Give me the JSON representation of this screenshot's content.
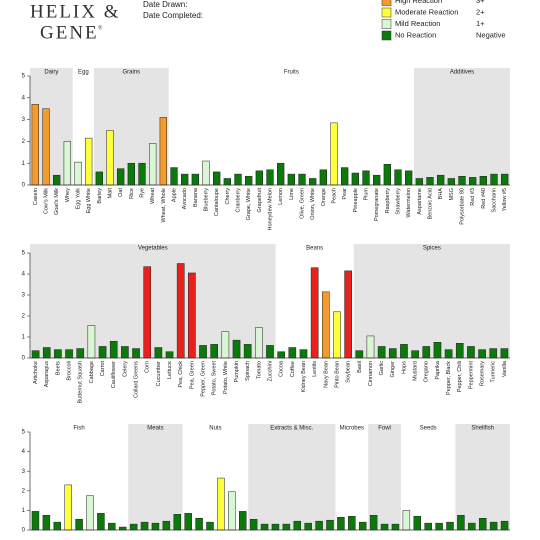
{
  "header": {
    "logo_line1": "HELIX &",
    "logo_line2": "GENE",
    "registered": "®",
    "date_drawn": "Date Drawn:",
    "date_completed": "Date Completed:"
  },
  "legend": [
    {
      "label": "High Reaction",
      "grade": "3+",
      "color": "#f39b2f"
    },
    {
      "label": "Moderate Reaction",
      "grade": "2+",
      "color": "#ffff3c"
    },
    {
      "label": "Mild Reaction",
      "grade": "1+",
      "color": "#d9f7d4"
    },
    {
      "label": "No Reaction",
      "grade": "Negative",
      "color": "#0b7a0b"
    }
  ],
  "chart_data": [
    {
      "type": "bar",
      "ylim": [
        0,
        5
      ],
      "yticks": [
        0,
        1,
        2,
        3,
        4,
        5
      ],
      "shade_color": "#e4e4e4",
      "groups": [
        {
          "name": "Dairy",
          "shaded": true,
          "categories": [
            "Casein",
            "Cow's Milk",
            "Goat's Milk",
            "Whey"
          ],
          "values": [
            3.7,
            3.5,
            0.45,
            2.0
          ],
          "colors": [
            "#f39b2f",
            "#f39b2f",
            "#0b7a0b",
            "#d9f7d4"
          ]
        },
        {
          "name": "Egg",
          "shaded": false,
          "categories": [
            "Egg Yolk",
            "Egg White"
          ],
          "values": [
            1.05,
            2.15
          ],
          "colors": [
            "#d9f7d4",
            "#ffff3c"
          ]
        },
        {
          "name": "Grains",
          "shaded": true,
          "categories": [
            "Barley",
            "Malt",
            "Oat",
            "Rice",
            "Rye",
            "Wheat",
            "Wheat, Whole"
          ],
          "values": [
            0.6,
            2.5,
            0.75,
            1.0,
            1.0,
            1.9,
            3.1
          ],
          "colors": [
            "#0b7a0b",
            "#ffff3c",
            "#0b7a0b",
            "#0b7a0b",
            "#0b7a0b",
            "#d9f7d4",
            "#f39b2f"
          ]
        },
        {
          "name": "Fruits",
          "shaded": false,
          "categories": [
            "Apple",
            "Avocado",
            "Banana",
            "Blueberry",
            "Cantaloupe",
            "Cherry",
            "Cranberry",
            "Grape, White",
            "Grapefruit",
            "Honeydew Melon",
            "Lemon",
            "Lime",
            "Olive, Green",
            "Onion, White",
            "Orange",
            "Peach",
            "Pear",
            "Pineapple",
            "Plum",
            "Pomegranate",
            "Raspberry",
            "Strawberry",
            "Watermelon"
          ],
          "values": [
            0.8,
            0.5,
            0.5,
            1.1,
            0.6,
            0.3,
            0.5,
            0.4,
            0.65,
            0.7,
            1.0,
            0.5,
            0.5,
            0.3,
            0.7,
            2.85,
            0.8,
            0.55,
            0.65,
            0.45,
            0.95,
            0.7,
            0.65
          ],
          "colors": [
            "#0b7a0b",
            "#0b7a0b",
            "#0b7a0b",
            "#d9f7d4",
            "#0b7a0b",
            "#0b7a0b",
            "#0b7a0b",
            "#0b7a0b",
            "#0b7a0b",
            "#0b7a0b",
            "#0b7a0b",
            "#0b7a0b",
            "#0b7a0b",
            "#0b7a0b",
            "#0b7a0b",
            "#ffff3c",
            "#0b7a0b",
            "#0b7a0b",
            "#0b7a0b",
            "#0b7a0b",
            "#0b7a0b",
            "#0b7a0b",
            "#0b7a0b"
          ]
        },
        {
          "name": "Additives",
          "shaded": true,
          "categories": [
            "Aspartame",
            "Benzoic Acid",
            "BHA",
            "MSG",
            "Polysorbate 80",
            "Red #3",
            "Red #40",
            "Saccharin",
            "Yellow #5"
          ],
          "values": [
            0.3,
            0.35,
            0.45,
            0.3,
            0.4,
            0.35,
            0.4,
            0.5,
            0.5
          ],
          "colors": [
            "#0b7a0b",
            "#0b7a0b",
            "#0b7a0b",
            "#0b7a0b",
            "#0b7a0b",
            "#0b7a0b",
            "#0b7a0b",
            "#0b7a0b",
            "#0b7a0b"
          ]
        }
      ]
    },
    {
      "type": "bar",
      "ylim": [
        0,
        5
      ],
      "yticks": [
        0,
        1,
        2,
        3,
        4,
        5
      ],
      "shade_color": "#e4e4e4",
      "groups": [
        {
          "name": "Vegetables",
          "shaded": true,
          "categories": [
            "Artichoke",
            "Asparagus",
            "Beets",
            "Broccoli",
            "Butternut Squash",
            "Cabbage",
            "Carrot",
            "Cauliflower",
            "Celery",
            "Collard Greens",
            "Corn",
            "Cucumber",
            "Lettuce",
            "Pea, Chick",
            "Pea, Green",
            "Pepper, Green",
            "Potato, Sweet",
            "Potato, White",
            "Pumpkin",
            "Spinach",
            "Tomato",
            "Zucchini"
          ],
          "values": [
            0.35,
            0.5,
            0.4,
            0.4,
            0.45,
            1.55,
            0.55,
            0.8,
            0.55,
            0.45,
            4.35,
            0.5,
            0.3,
            4.5,
            4.05,
            0.6,
            0.65,
            1.25,
            0.85,
            0.65,
            1.45,
            0.6
          ],
          "colors": [
            "#0b7a0b",
            "#0b7a0b",
            "#0b7a0b",
            "#0b7a0b",
            "#0b7a0b",
            "#d9f7d4",
            "#0b7a0b",
            "#0b7a0b",
            "#0b7a0b",
            "#0b7a0b",
            "#e8211d",
            "#0b7a0b",
            "#0b7a0b",
            "#e8211d",
            "#e8211d",
            "#0b7a0b",
            "#0b7a0b",
            "#d9f7d4",
            "#0b7a0b",
            "#0b7a0b",
            "#d9f7d4",
            "#0b7a0b"
          ]
        },
        {
          "name": "Beans",
          "shaded": false,
          "categories": [
            "Cocoa",
            "Coffee",
            "Kidney Bean",
            "Lentils",
            "Navy Bean",
            "Pinto Bean",
            "Soybean"
          ],
          "values": [
            0.3,
            0.5,
            0.4,
            4.3,
            3.15,
            2.2,
            4.15
          ],
          "colors": [
            "#0b7a0b",
            "#0b7a0b",
            "#0b7a0b",
            "#e8211d",
            "#f39b2f",
            "#ffff3c",
            "#e8211d"
          ]
        },
        {
          "name": "Spices",
          "shaded": true,
          "categories": [
            "Basil",
            "Cinnamon",
            "Garlic",
            "Ginger",
            "Hops",
            "Mustard",
            "Oregano",
            "Paprika",
            "Pepper, Black",
            "Pepper, Chili",
            "Peppermint",
            "Rosemary",
            "Turmeric",
            "Vanilla"
          ],
          "values": [
            0.35,
            1.05,
            0.55,
            0.45,
            0.65,
            0.35,
            0.55,
            0.75,
            0.4,
            0.7,
            0.55,
            0.4,
            0.45,
            0.45
          ],
          "colors": [
            "#0b7a0b",
            "#d9f7d4",
            "#0b7a0b",
            "#0b7a0b",
            "#0b7a0b",
            "#0b7a0b",
            "#0b7a0b",
            "#0b7a0b",
            "#0b7a0b",
            "#0b7a0b",
            "#0b7a0b",
            "#0b7a0b",
            "#0b7a0b",
            "#0b7a0b"
          ]
        }
      ]
    },
    {
      "type": "bar",
      "ylim": [
        0,
        5
      ],
      "yticks": [
        0,
        1,
        2,
        3,
        4,
        5
      ],
      "shade_color": "#e4e4e4",
      "groups": [
        {
          "name": "Fish",
          "shaded": false,
          "categories": [
            null,
            null,
            null,
            null,
            null,
            null,
            null,
            null,
            null
          ],
          "values": [
            0.95,
            0.75,
            0.4,
            2.3,
            0.55,
            1.75,
            0.85,
            0.35,
            0.15
          ],
          "colors": [
            "#0b7a0b",
            "#0b7a0b",
            "#0b7a0b",
            "#ffff3c",
            "#0b7a0b",
            "#d9f7d4",
            "#0b7a0b",
            "#0b7a0b",
            "#0b7a0b"
          ]
        },
        {
          "name": "Meats",
          "shaded": true,
          "categories": [
            null,
            null,
            null,
            null,
            null
          ],
          "values": [
            0.3,
            0.4,
            0.35,
            0.45,
            0.8
          ],
          "colors": [
            "#0b7a0b",
            "#0b7a0b",
            "#0b7a0b",
            "#0b7a0b",
            "#0b7a0b"
          ]
        },
        {
          "name": "Nuts",
          "shaded": false,
          "categories": [
            null,
            null,
            null,
            null,
            null,
            null
          ],
          "values": [
            0.85,
            0.6,
            0.4,
            2.65,
            1.95,
            0.95
          ],
          "colors": [
            "#0b7a0b",
            "#0b7a0b",
            "#0b7a0b",
            "#ffff3c",
            "#d9f7d4",
            "#0b7a0b"
          ]
        },
        {
          "name": "Extracts & Misc.",
          "shaded": true,
          "categories": [
            null,
            null,
            null,
            null,
            null,
            null,
            null,
            null
          ],
          "values": [
            0.55,
            0.3,
            0.3,
            0.3,
            0.45,
            0.35,
            0.45,
            0.5
          ],
          "colors": [
            "#0b7a0b",
            "#0b7a0b",
            "#0b7a0b",
            "#0b7a0b",
            "#0b7a0b",
            "#0b7a0b",
            "#0b7a0b",
            "#0b7a0b"
          ]
        },
        {
          "name": "Microbes",
          "shaded": false,
          "categories": [
            null,
            null,
            null
          ],
          "values": [
            0.65,
            0.7,
            0.4
          ],
          "colors": [
            "#0b7a0b",
            "#0b7a0b",
            "#0b7a0b"
          ]
        },
        {
          "name": "Fowl",
          "shaded": true,
          "categories": [
            null,
            null,
            null
          ],
          "values": [
            0.75,
            0.3,
            0.3
          ],
          "colors": [
            "#0b7a0b",
            "#0b7a0b",
            "#0b7a0b"
          ]
        },
        {
          "name": "Seeds",
          "shaded": false,
          "categories": [
            null,
            null,
            null,
            null,
            null
          ],
          "values": [
            1.0,
            0.7,
            0.35,
            0.35,
            0.4
          ],
          "colors": [
            "#d9f7d4",
            "#0b7a0b",
            "#0b7a0b",
            "#0b7a0b",
            "#0b7a0b"
          ]
        },
        {
          "name": "Shellfish",
          "shaded": true,
          "categories": [
            null,
            null,
            null,
            null,
            null
          ],
          "values": [
            0.75,
            0.35,
            0.6,
            0.4,
            0.45
          ],
          "colors": [
            "#0b7a0b",
            "#0b7a0b",
            "#0b7a0b",
            "#0b7a0b",
            "#0b7a0b"
          ]
        }
      ]
    }
  ]
}
